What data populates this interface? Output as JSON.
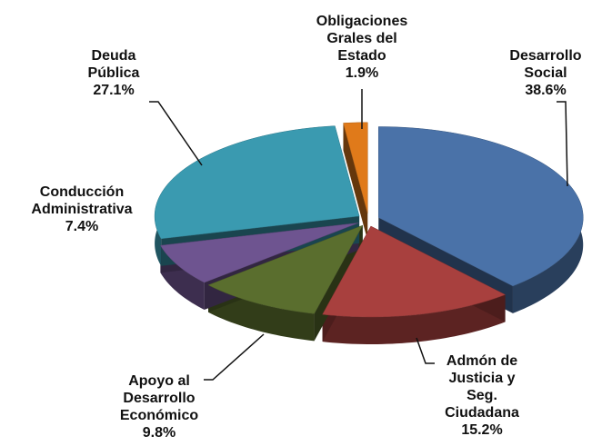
{
  "chart_data": {
    "type": "pie",
    "categories": [
      "Desarrollo Social",
      "Admón de Justicia y Seg. Ciudadana",
      "Apoyo al Desarrollo Económico",
      "Conducción Administrativa",
      "Deuda Pública",
      "Obligaciones Grales del Estado"
    ],
    "values": [
      38.6,
      15.2,
      9.8,
      7.4,
      27.1,
      1.9
    ],
    "value_labels": [
      "38.6%",
      "15.2%",
      "9.8%",
      "7.4%",
      "27.1%",
      "1.9%"
    ],
    "colors": [
      "#4a72a8",
      "#a8403e",
      "#5a6e2e",
      "#6e5490",
      "#3a9ab0",
      "#e07a1a"
    ]
  }
}
